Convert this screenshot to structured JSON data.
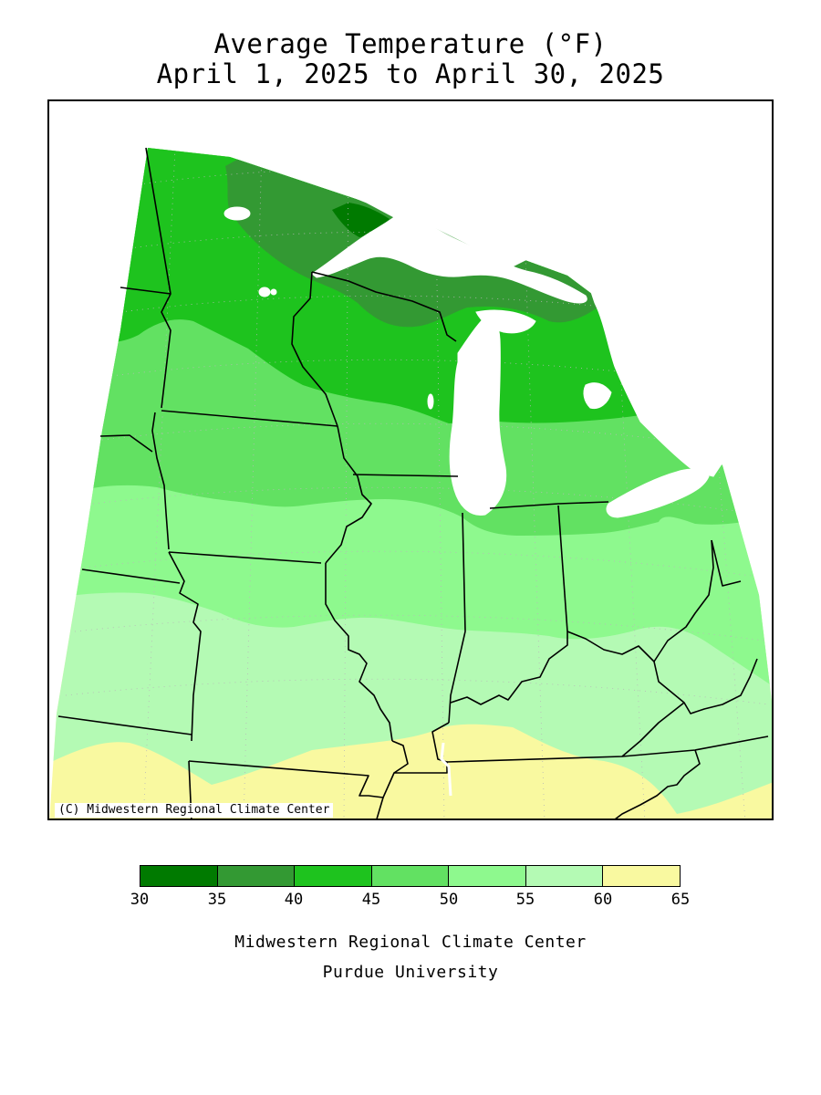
{
  "title": {
    "line1": "Average Temperature (°F)",
    "line2": "April 1, 2025 to April 30, 2025"
  },
  "map": {
    "copyright": "(C) Midwestern Regional Climate Center",
    "bands": [
      {
        "range": "30-35",
        "color": "#007a00"
      },
      {
        "range": "35-40",
        "color": "#339933"
      },
      {
        "range": "40-45",
        "color": "#1ec31e"
      },
      {
        "range": "45-50",
        "color": "#62e162"
      },
      {
        "range": "50-55",
        "color": "#8ef98e"
      },
      {
        "range": "55-60",
        "color": "#b4fab4"
      },
      {
        "range": "60-65",
        "color": "#f9f9a0"
      }
    ],
    "water_color": "#ffffff"
  },
  "legend": {
    "colors": [
      "#007a00",
      "#339933",
      "#1ec31e",
      "#62e162",
      "#8ef98e",
      "#b4fab4",
      "#f9f9a0"
    ],
    "ticks": [
      "30",
      "35",
      "40",
      "45",
      "50",
      "55",
      "60",
      "65"
    ]
  },
  "footer": {
    "line1": "Midwestern Regional Climate Center",
    "line2": "Purdue University"
  }
}
